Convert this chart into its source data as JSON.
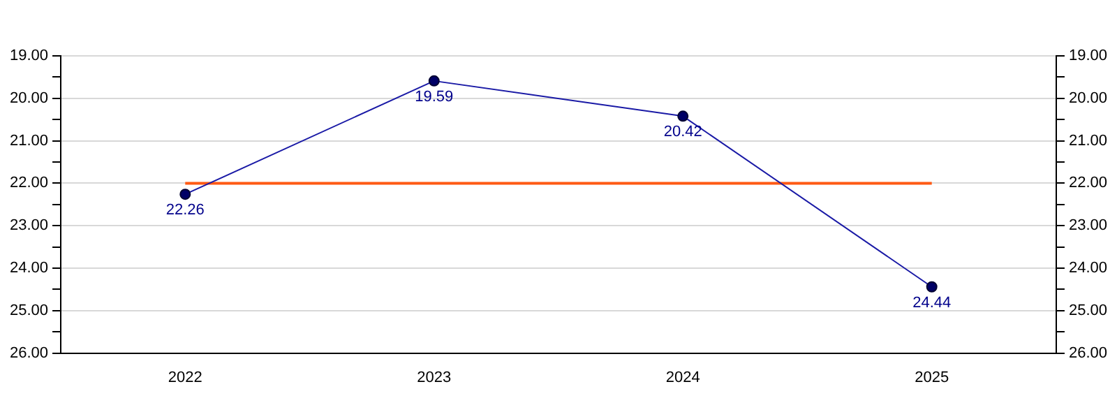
{
  "chart_data": {
    "type": "line",
    "categories": [
      "2022",
      "2023",
      "2024",
      "2025"
    ],
    "series": [
      {
        "color": "#1a1aa6",
        "values": [
          22.26,
          19.59,
          20.42,
          24.44
        ],
        "marker": "circle"
      },
      {
        "color": "#ff5a14",
        "values": [
          22,
          22,
          22,
          22
        ],
        "marker": "none",
        "data_labels": false
      }
    ],
    "data_labels": true,
    "ylim": [
      26,
      19
    ],
    "yticks": [
      {
        "value": 19,
        "label": "19.00"
      },
      {
        "value": 19.5,
        "label": null
      },
      {
        "value": 20,
        "label": "20.00"
      },
      {
        "value": 20.5,
        "label": null
      },
      {
        "value": 21,
        "label": "21.00"
      },
      {
        "value": 21.5,
        "label": null
      },
      {
        "value": 22,
        "label": "22.00"
      },
      {
        "value": 22.5,
        "label": null
      },
      {
        "value": 23,
        "label": "23.00"
      },
      {
        "value": 23.5,
        "label": null
      },
      {
        "value": 24,
        "label": "24.00"
      },
      {
        "value": 24.5,
        "label": null
      },
      {
        "value": 25,
        "label": "25.00"
      },
      {
        "value": 25.5,
        "label": null
      },
      {
        "value": 26,
        "label": "26.00"
      }
    ],
    "y2lim": [
      26,
      19
    ],
    "y2ticks": [
      {
        "value": 19,
        "label": "19.00"
      },
      {
        "value": 19.5,
        "label": null
      },
      {
        "value": 20,
        "label": "20.00"
      },
      {
        "value": 20.5,
        "label": null
      },
      {
        "value": 21,
        "label": "21.00"
      },
      {
        "value": 21.5,
        "label": null
      },
      {
        "value": 22,
        "label": "22.00"
      },
      {
        "value": 22.5,
        "label": null
      },
      {
        "value": 23,
        "label": "23.00"
      },
      {
        "value": 23.5,
        "label": null
      },
      {
        "value": 24,
        "label": "24.00"
      },
      {
        "value": 24.5,
        "label": null
      },
      {
        "value": 25,
        "label": "25.00"
      },
      {
        "value": 25.5,
        "label": null
      },
      {
        "value": 26,
        "label": "26.00"
      }
    ],
    "grid": "y",
    "legend": false,
    "line_style": "solid"
  }
}
